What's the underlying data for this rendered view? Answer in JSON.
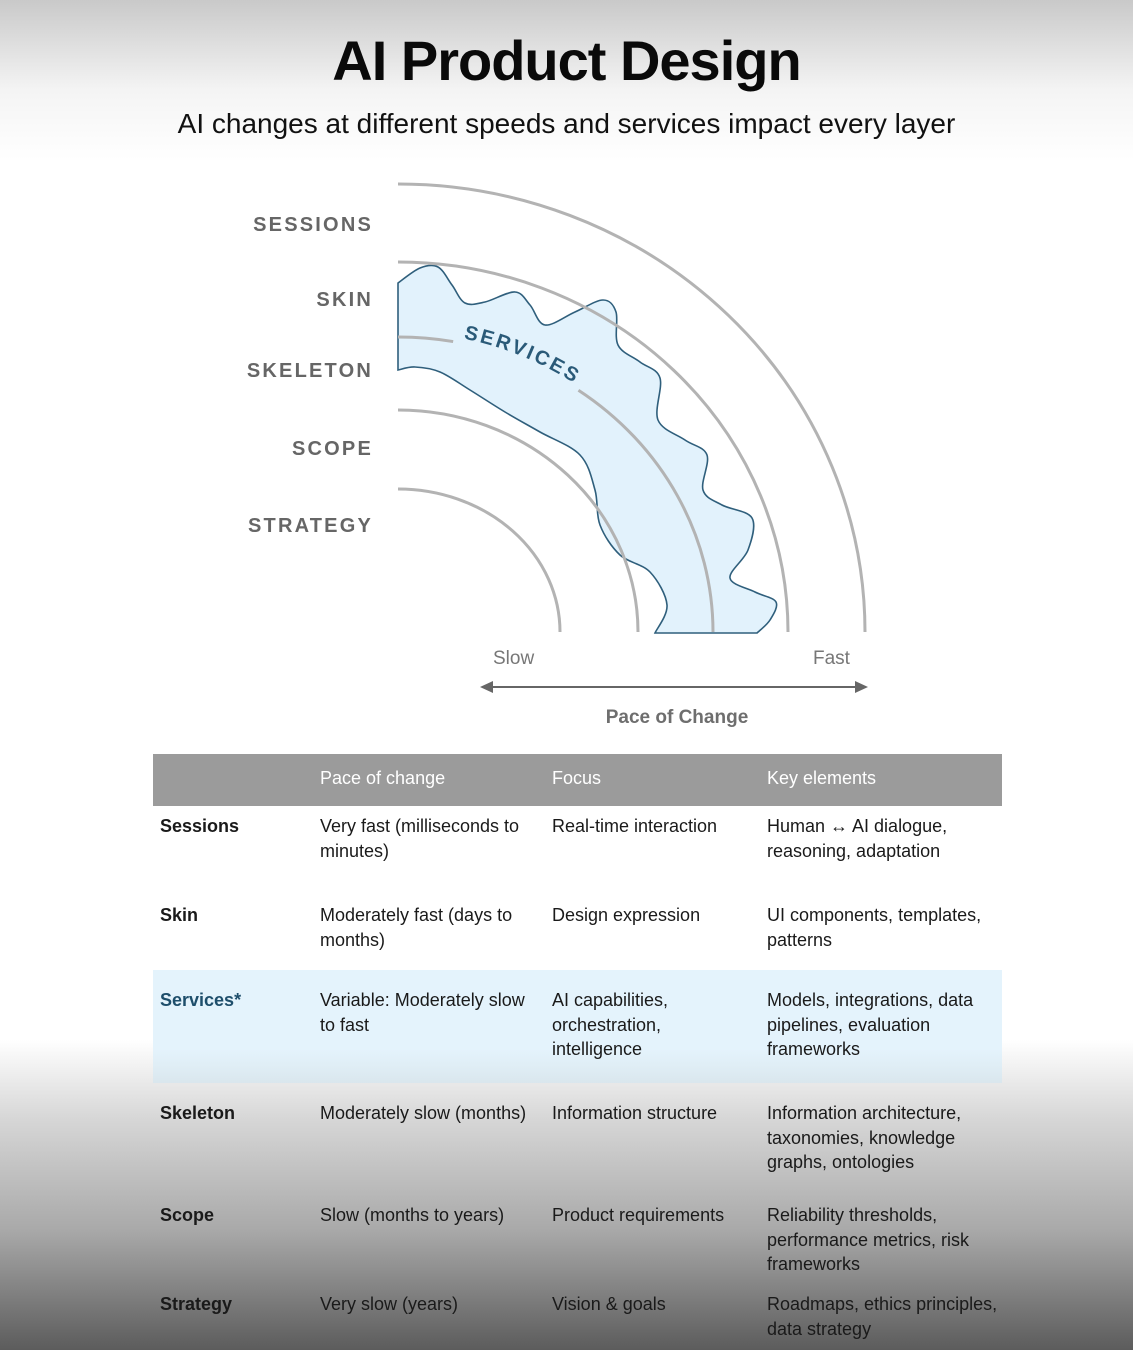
{
  "header": {
    "title": "AI Product Design",
    "subtitle": "AI changes at different speeds and services impact every layer"
  },
  "diagram": {
    "layers": [
      "SESSIONS",
      "SKIN",
      "SKELETON",
      "SCOPE",
      "STRATEGY"
    ],
    "overlay_label": "SERVICES",
    "axis": {
      "slow": "Slow",
      "fast": "Fast",
      "title": "Pace of Change"
    },
    "colors": {
      "arc": "#b3b3b3",
      "services_fill": "#e2f2fc",
      "services_stroke": "#2f5f7c",
      "services_text": "#2a5a78"
    }
  },
  "table": {
    "headers": [
      "",
      "Pace of change",
      "Focus",
      "Key elements"
    ],
    "rows": [
      {
        "layer": "Sessions",
        "pace": "Very fast (milliseconds to minutes)",
        "focus": "Real-time interaction",
        "key": "Human ↔ AI dialogue, reasoning, adaptation"
      },
      {
        "layer": "Skin",
        "pace": "Moderately fast (days to months)",
        "focus": "Design expression",
        "key": "UI components, templates, patterns"
      },
      {
        "layer": "Services*",
        "pace": "Variable: Moderately slow to fast",
        "focus": "AI capabilities, orchestration, intelligence",
        "key": "Models, integrations, data pipelines, evaluation frameworks",
        "highlight": true
      },
      {
        "layer": "Skeleton",
        "pace": "Moderately slow (months)",
        "focus": "Information structure",
        "key": "Information architecture, taxonomies, knowledge graphs, ontologies"
      },
      {
        "layer": "Scope",
        "pace": "Slow (months to years)",
        "focus": "Product requirements",
        "key": "Reliability thresholds, performance metrics, risk frameworks"
      },
      {
        "layer": "Strategy",
        "pace": "Very slow (years)",
        "focus": "Vision & goals",
        "key": "Roadmaps, ethics principles, data strategy"
      }
    ],
    "colors": {
      "header_bg": "#9b9b9b",
      "highlight_bg": "#e4f3fc"
    }
  }
}
